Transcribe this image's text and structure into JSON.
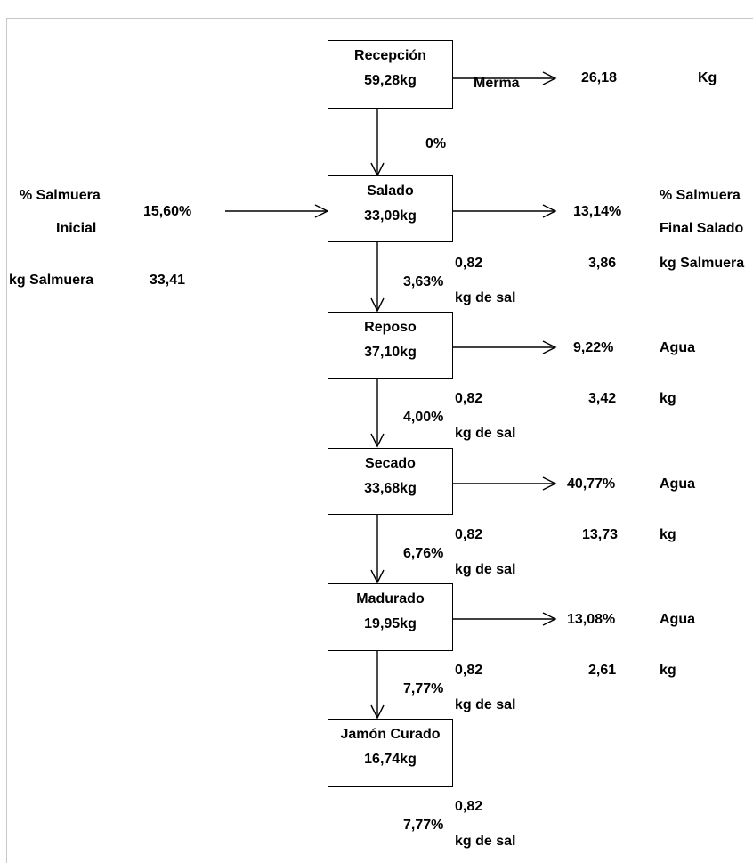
{
  "steps": [
    {
      "name": "Recepción",
      "weight": "59,28kg"
    },
    {
      "name": "Salado",
      "weight": "33,09kg"
    },
    {
      "name": "Reposo",
      "weight": "37,10kg"
    },
    {
      "name": "Secado",
      "weight": "33,68kg"
    },
    {
      "name": "Madurado",
      "weight": "19,95kg"
    },
    {
      "name": "Jamón Curado",
      "weight": "16,74kg"
    }
  ],
  "merma": {
    "label": "Merma",
    "value": "26,18",
    "unit": "Kg"
  },
  "input": {
    "salmuera_label_1": "% Salmuera",
    "salmuera_label_2": "Inicial",
    "salmuera_pct": "15,60%",
    "kg_label": "kg Salmuera",
    "kg_value": "33,41"
  },
  "salado_out": {
    "pct": "13,14%",
    "label_1": "% Salmuera",
    "label_2": "Final Salado",
    "kg": "3,86",
    "kg_label": "kg Salmuera"
  },
  "links": [
    {
      "pct": "0%"
    },
    {
      "pct": "3,63%",
      "sal_value": "0,82",
      "sal_label": "kg de sal"
    },
    {
      "pct": "4,00%",
      "sal_value": "0,82",
      "sal_label": "kg de sal"
    },
    {
      "pct": "6,76%",
      "sal_value": "0,82",
      "sal_label": "kg de sal"
    },
    {
      "pct": "7,77%",
      "sal_value": "0,82",
      "sal_label": "kg de sal"
    },
    {
      "pct": "7,77%",
      "sal_value": "0,82",
      "sal_label": "kg de sal"
    }
  ],
  "water_outputs": [
    {
      "pct": "9,22%",
      "label": "Agua",
      "kg": "3,42",
      "kg_label": "kg"
    },
    {
      "pct": "40,77%",
      "label": "Agua",
      "kg": "13,73",
      "kg_label": "kg"
    },
    {
      "pct": "13,08%",
      "label": "Agua",
      "kg": "2,61",
      "kg_label": "kg"
    }
  ]
}
